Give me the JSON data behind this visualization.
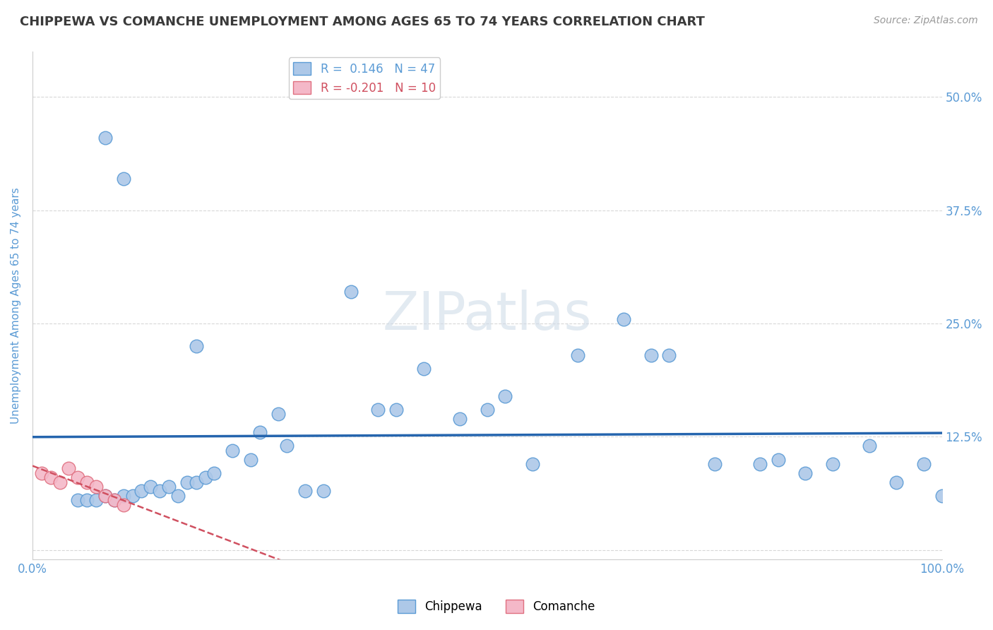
{
  "title": "CHIPPEWA VS COMANCHE UNEMPLOYMENT AMONG AGES 65 TO 74 YEARS CORRELATION CHART",
  "source": "Source: ZipAtlas.com",
  "ylabel": "Unemployment Among Ages 65 to 74 years",
  "watermark": "ZIPatlas",
  "chippewa_R": 0.146,
  "chippewa_N": 47,
  "comanche_R": -0.201,
  "comanche_N": 10,
  "xlim": [
    0.0,
    1.0
  ],
  "ylim": [
    -0.01,
    0.55
  ],
  "chippewa_x": [
    0.08,
    0.1,
    0.05,
    0.06,
    0.07,
    0.08,
    0.09,
    0.1,
    0.11,
    0.12,
    0.13,
    0.14,
    0.15,
    0.16,
    0.17,
    0.18,
    0.19,
    0.2,
    0.22,
    0.24,
    0.25,
    0.27,
    0.28,
    0.3,
    0.32,
    0.35,
    0.38,
    0.4,
    0.43,
    0.47,
    0.5,
    0.52,
    0.55,
    0.6,
    0.65,
    0.68,
    0.7,
    0.75,
    0.8,
    0.82,
    0.85,
    0.88,
    0.92,
    0.95,
    0.98,
    1.0,
    0.18
  ],
  "chippewa_y": [
    0.455,
    0.41,
    0.055,
    0.055,
    0.055,
    0.06,
    0.055,
    0.06,
    0.06,
    0.065,
    0.07,
    0.065,
    0.07,
    0.06,
    0.075,
    0.075,
    0.08,
    0.085,
    0.11,
    0.1,
    0.13,
    0.15,
    0.115,
    0.065,
    0.065,
    0.285,
    0.155,
    0.155,
    0.2,
    0.145,
    0.155,
    0.17,
    0.095,
    0.215,
    0.255,
    0.215,
    0.215,
    0.095,
    0.095,
    0.1,
    0.085,
    0.095,
    0.115,
    0.075,
    0.095,
    0.06,
    0.225
  ],
  "comanche_x": [
    0.01,
    0.02,
    0.03,
    0.04,
    0.05,
    0.06,
    0.07,
    0.08,
    0.09,
    0.1
  ],
  "comanche_y": [
    0.085,
    0.08,
    0.075,
    0.09,
    0.08,
    0.075,
    0.07,
    0.06,
    0.055,
    0.05
  ],
  "chippewa_color": "#adc8e8",
  "chippewa_edge": "#5b9bd5",
  "comanche_color": "#f4b8c8",
  "comanche_edge": "#e07080",
  "trend_blue_color": "#2565ae",
  "trend_red_color": "#d05060",
  "background_color": "#ffffff",
  "title_color": "#3a3a3a",
  "axis_label_color": "#5b9bd5",
  "tick_color": "#5b9bd5",
  "grid_color": "#d8d8d8",
  "yticks": [
    0.0,
    0.125,
    0.25,
    0.375,
    0.5
  ],
  "ytick_labels": [
    "",
    "12.5%",
    "25.0%",
    "37.5%",
    "50.0%"
  ],
  "xticks": [
    0.0,
    0.25,
    0.5,
    0.75,
    1.0
  ],
  "xtick_labels": [
    "0.0%",
    "",
    "",
    "",
    "100.0%"
  ]
}
